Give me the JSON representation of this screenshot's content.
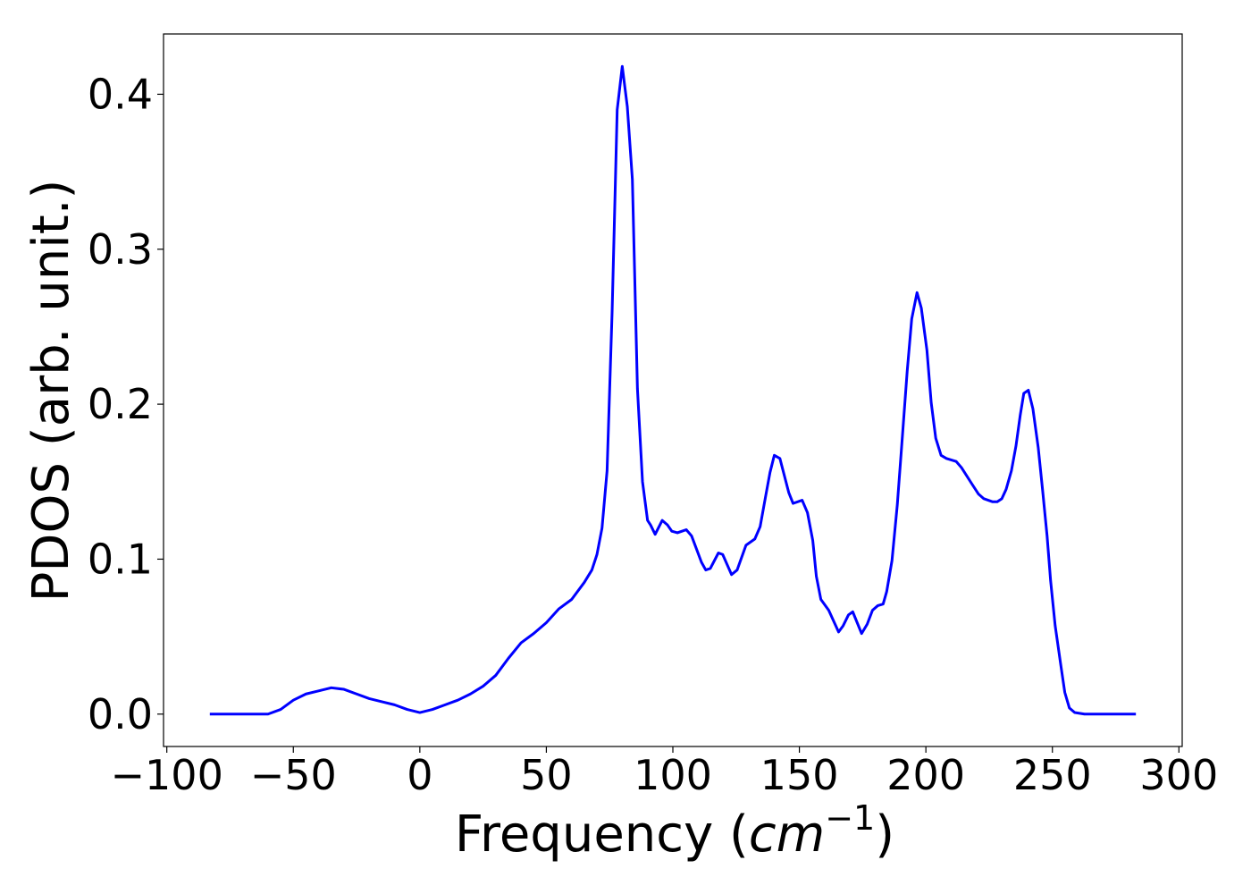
{
  "chart_data": {
    "type": "line",
    "x_label": {
      "text": "Frequency (",
      "math": "cm",
      "sup": "−1",
      "close": ")"
    },
    "y_label": "PDOS (arb. unit.)",
    "x": [
      -83,
      -60,
      -55,
      -50,
      -45,
      -40,
      -35,
      -30,
      -25,
      -20,
      -15,
      -10,
      -5,
      0,
      5,
      10,
      15,
      20,
      25,
      30,
      35,
      40,
      45,
      50,
      55,
      60,
      65,
      68,
      70,
      72,
      74,
      76,
      78,
      80,
      82,
      84,
      86,
      88,
      90,
      91.2,
      93.0,
      95.8,
      97.9,
      99.6,
      101.8,
      105.3,
      107.4,
      111.3,
      113.0,
      114.8,
      118.0,
      119.7,
      123.2,
      125.4,
      128.9,
      132.4,
      134.5,
      136.6,
      138.4,
      140.1,
      142.3,
      145.8,
      147.5,
      151.1,
      153.2,
      155.3,
      156.7,
      158.5,
      161.6,
      165.5,
      167.3,
      169.4,
      171.1,
      174.6,
      176.8,
      178.9,
      181.0,
      183.1,
      184.5,
      186.6,
      188.7,
      190.8,
      192.6,
      194.4,
      196.5,
      198.2,
      200.4,
      202.1,
      203.9,
      206.0,
      208.1,
      212.0,
      214.1,
      218.0,
      220.8,
      222.9,
      226.4,
      228.2,
      230.0,
      231.7,
      233.8,
      235.6,
      237.3,
      238.7,
      240.5,
      242.3,
      244.4,
      246.1,
      247.9,
      249.3,
      251.1,
      253.2,
      254.9,
      256.7,
      258.8,
      262.7,
      283
    ],
    "series": [
      {
        "color": "#0000ff",
        "values": [
          0,
          0.0,
          0.003,
          0.009,
          0.013,
          0.015,
          0.017,
          0.016,
          0.013,
          0.01,
          0.008,
          0.006,
          0.003,
          0.001,
          0.003,
          0.006,
          0.009,
          0.013,
          0.018,
          0.025,
          0.036,
          0.046,
          0.052,
          0.059,
          0.068,
          0.074,
          0.085,
          0.093,
          0.103,
          0.12,
          0.157,
          0.26,
          0.39,
          0.418,
          0.392,
          0.345,
          0.21,
          0.15,
          0.125,
          0.122,
          0.116,
          0.125,
          0.122,
          0.118,
          0.117,
          0.119,
          0.115,
          0.098,
          0.093,
          0.094,
          0.104,
          0.103,
          0.09,
          0.093,
          0.109,
          0.113,
          0.121,
          0.14,
          0.156,
          0.167,
          0.165,
          0.143,
          0.136,
          0.138,
          0.13,
          0.112,
          0.089,
          0.074,
          0.067,
          0.053,
          0.057,
          0.064,
          0.066,
          0.052,
          0.058,
          0.067,
          0.07,
          0.071,
          0.079,
          0.099,
          0.135,
          0.181,
          0.221,
          0.255,
          0.272,
          0.262,
          0.235,
          0.201,
          0.178,
          0.167,
          0.165,
          0.163,
          0.159,
          0.149,
          0.142,
          0.139,
          0.137,
          0.137,
          0.139,
          0.145,
          0.157,
          0.173,
          0.193,
          0.207,
          0.209,
          0.197,
          0.172,
          0.145,
          0.115,
          0.086,
          0.057,
          0.033,
          0.014,
          0.004,
          0.001,
          0,
          0
        ]
      }
    ],
    "xlim": [
      -101.3,
      301.3
    ],
    "ylim": [
      -0.0209,
      0.4389
    ],
    "xticks": [
      {
        "value": -100,
        "label": "−100"
      },
      {
        "value": -50,
        "label": "−50"
      },
      0,
      50,
      100,
      150,
      200,
      250,
      300
    ],
    "yticks": [
      {
        "value": 0,
        "label": "0.0"
      },
      0.1,
      0.2,
      0.3,
      0.4
    ]
  }
}
